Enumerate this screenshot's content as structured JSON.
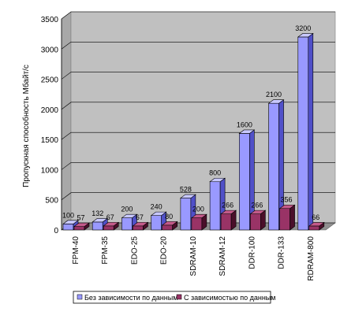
{
  "chart_data": {
    "type": "bar",
    "categories": [
      "FPM-40",
      "FPM-35",
      "EDO-25",
      "EDO-20",
      "SDRAM-10",
      "SDRAM-12",
      "DDR-100",
      "DDR-133",
      "RDRAM-800"
    ],
    "series": [
      {
        "name": "Без зависимости по данным",
        "values": [
          100,
          132,
          200,
          240,
          528,
          800,
          1600,
          2100,
          3200
        ],
        "color": "#9999ff"
      },
      {
        "name": "С зависимостью по данным",
        "values": [
          57,
          67,
          67,
          80,
          200,
          266,
          266,
          356,
          66
        ],
        "color": "#993366"
      }
    ],
    "data_labels": {
      "series_0": [
        "100",
        "132",
        "200",
        "240",
        "528",
        "800",
        "1600",
        "2100",
        "3200"
      ],
      "series_1": [
        "57",
        "67",
        "67",
        "80",
        "200",
        "266",
        "266",
        "356",
        "66"
      ]
    },
    "ylabel": "Пропускная способность Мбайт/с",
    "yticks": [
      "0",
      "500",
      "1000",
      "1500",
      "2000",
      "2500",
      "3000",
      "3500"
    ],
    "ylim": [
      0,
      3500
    ],
    "grid": true,
    "legend_position": "bottom",
    "style": "3d-clustered-column",
    "wall_color": "#c0c0c0"
  }
}
